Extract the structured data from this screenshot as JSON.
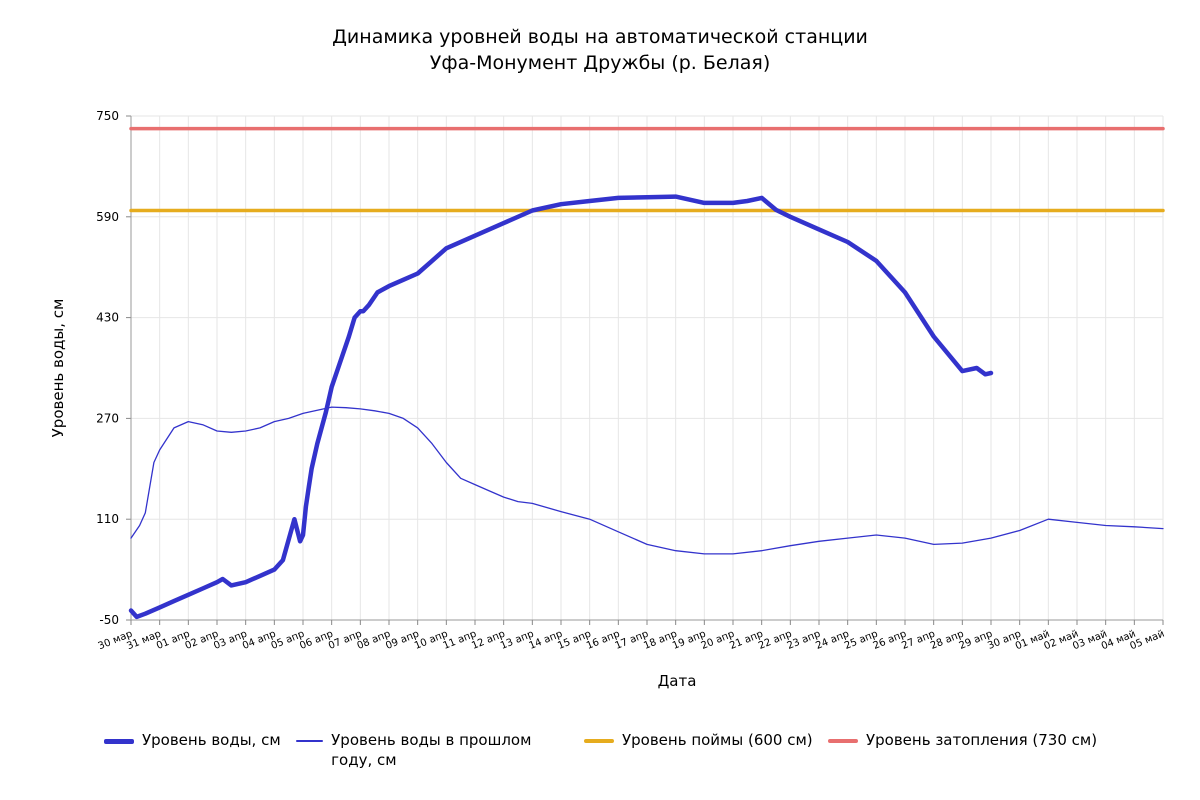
{
  "chart_data": {
    "type": "line",
    "title": "Динамика уровней воды на автоматической станции",
    "subtitle": "Уфа-Монумент Дружбы (р. Белая)",
    "xlabel": "Дата",
    "ylabel": "Уровень воды, см",
    "ylim": [
      -50,
      750
    ],
    "yticks": [
      -50,
      110,
      270,
      430,
      590,
      750
    ],
    "xticks": [
      "30 мар",
      "31 мар",
      "01 апр",
      "02 апр",
      "03 апр",
      "04 апр",
      "05 апр",
      "06 апр",
      "07 апр",
      "08 апр",
      "09 апр",
      "10 апр",
      "11 апр",
      "12 апр",
      "13 апр",
      "14 апр",
      "15 апр",
      "16 апр",
      "17 апр",
      "18 апр",
      "19 апр",
      "20 апр",
      "21 апр",
      "22 апр",
      "23 апр",
      "24 апр",
      "25 апр",
      "26 апр",
      "27 апр",
      "28 апр",
      "29 апр",
      "30 апр",
      "01 май",
      "02 май",
      "03 май",
      "04 май",
      "05 май"
    ],
    "grid": true,
    "legend_position": "bottom",
    "series": [
      {
        "name": "Уровень воды, см",
        "color": "#3333cc",
        "style": "thick",
        "x": [
          0,
          0.2,
          0.5,
          1,
          1.5,
          2,
          2.5,
          3,
          3.2,
          3.5,
          4,
          4.5,
          5,
          5.3,
          5.7,
          5.9,
          6.0,
          6.1,
          6.2,
          6.3,
          6.5,
          6.8,
          7,
          7.3,
          7.6,
          7.8,
          8,
          8.1,
          8.3,
          8.6,
          9,
          9.5,
          10,
          10.5,
          11,
          12,
          13,
          14,
          15,
          16,
          17,
          18,
          19,
          20,
          21,
          21.5,
          22,
          22.5,
          23,
          24,
          25,
          26,
          27,
          28,
          29,
          29.5,
          29.8,
          30
        ],
        "values": [
          -35,
          -45,
          -40,
          -30,
          -20,
          -10,
          0,
          10,
          15,
          5,
          10,
          20,
          30,
          45,
          110,
          75,
          85,
          130,
          160,
          190,
          230,
          280,
          320,
          360,
          400,
          430,
          440,
          440,
          450,
          470,
          480,
          490,
          500,
          520,
          540,
          560,
          580,
          600,
          610,
          615,
          620,
          621,
          622,
          612,
          612,
          615,
          620,
          601,
          590,
          570,
          550,
          520,
          470,
          400,
          345,
          350,
          340,
          342
        ]
      },
      {
        "name": "Уровень воды в прошлом году, см",
        "color": "#3333cc",
        "style": "thin",
        "x": [
          0,
          0.3,
          0.5,
          0.8,
          1,
          1.5,
          2,
          2.5,
          3,
          3.5,
          4,
          4.5,
          5,
          5.5,
          6,
          6.5,
          7,
          7.5,
          8,
          8.5,
          9,
          9.5,
          10,
          10.5,
          11,
          11.5,
          12,
          12.5,
          13,
          13.5,
          14,
          15,
          16,
          17,
          18,
          19,
          20,
          21,
          22,
          23,
          24,
          25,
          26,
          27,
          28,
          29,
          30,
          31,
          32,
          33,
          34,
          35,
          36
        ],
        "values": [
          80,
          100,
          120,
          200,
          220,
          255,
          265,
          260,
          250,
          248,
          250,
          255,
          265,
          270,
          278,
          283,
          288,
          287,
          285,
          282,
          278,
          270,
          255,
          230,
          200,
          175,
          165,
          155,
          145,
          138,
          135,
          122,
          110,
          90,
          70,
          60,
          55,
          55,
          60,
          68,
          75,
          80,
          85,
          80,
          70,
          72,
          80,
          92,
          110,
          105,
          100,
          98,
          95
        ]
      },
      {
        "name": "Уровень поймы (600 см)",
        "color": "#e6ac1e",
        "style": "flat",
        "x": [
          0,
          36
        ],
        "values": [
          600,
          600
        ]
      },
      {
        "name": "Уровень затопления (730 см)",
        "color": "#e86f6f",
        "style": "flat",
        "x": [
          0,
          36
        ],
        "values": [
          730,
          730
        ]
      }
    ]
  }
}
